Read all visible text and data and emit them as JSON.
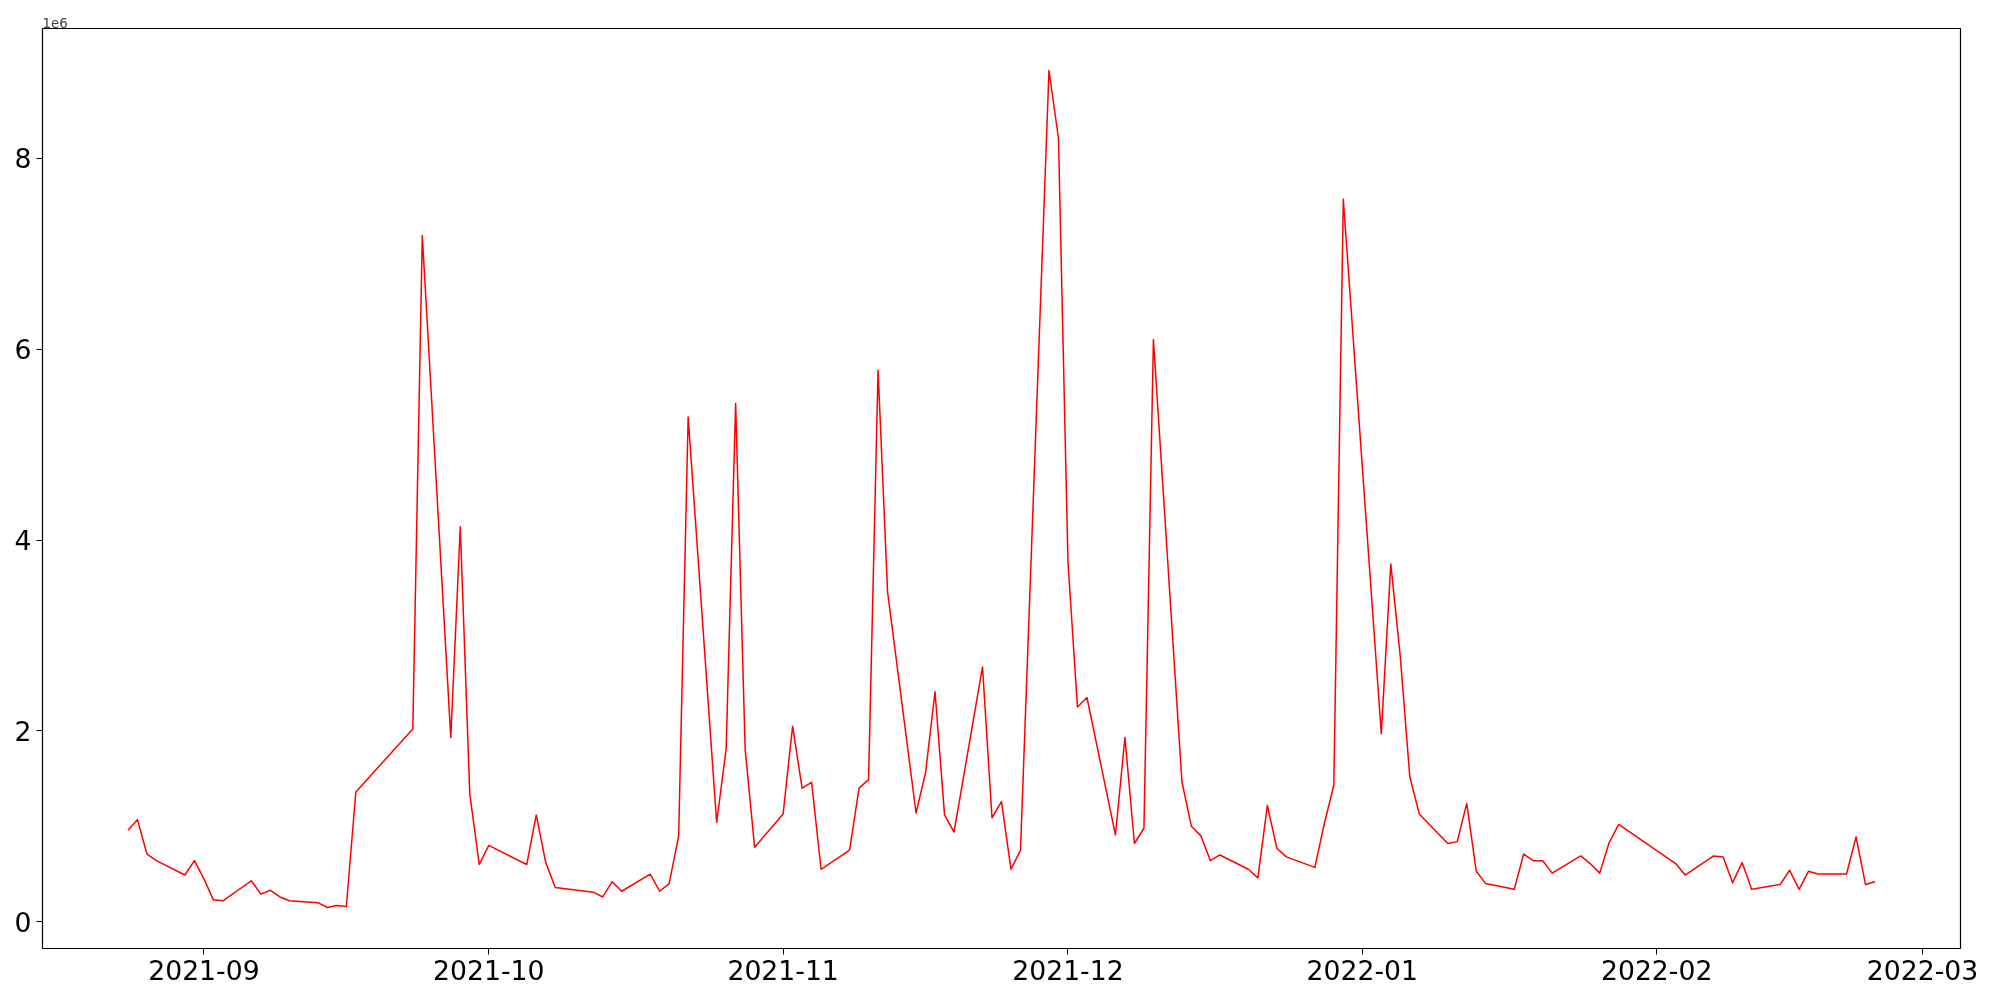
{
  "chart_data": {
    "type": "line",
    "annotations": [
      "1e6"
    ],
    "grid": false,
    "line_style": "solid",
    "x": [
      "2021-08-24",
      "2021-08-25",
      "2021-08-26",
      "2021-08-27",
      "2021-08-30",
      "2021-08-31",
      "2021-09-01",
      "2021-09-02",
      "2021-09-03",
      "2021-09-06",
      "2021-09-07",
      "2021-09-08",
      "2021-09-09",
      "2021-09-10",
      "2021-09-13",
      "2021-09-14",
      "2021-09-15",
      "2021-09-16",
      "2021-09-17",
      "2021-09-23",
      "2021-09-24",
      "2021-09-27",
      "2021-09-28",
      "2021-09-29",
      "2021-09-30",
      "2021-10-01",
      "2021-10-05",
      "2021-10-06",
      "2021-10-07",
      "2021-10-08",
      "2021-10-12",
      "2021-10-13",
      "2021-10-14",
      "2021-10-15",
      "2021-10-18",
      "2021-10-19",
      "2021-10-20",
      "2021-10-21",
      "2021-10-22",
      "2021-10-25",
      "2021-10-26",
      "2021-10-27",
      "2021-10-28",
      "2021-10-29",
      "2021-11-01",
      "2021-11-02",
      "2021-11-03",
      "2021-11-04",
      "2021-11-05",
      "2021-11-08",
      "2021-11-09",
      "2021-11-10",
      "2021-11-11",
      "2021-11-12",
      "2021-11-15",
      "2021-11-16",
      "2021-11-17",
      "2021-11-18",
      "2021-11-19",
      "2021-11-22",
      "2021-11-23",
      "2021-11-24",
      "2021-11-25",
      "2021-11-26",
      "2021-11-29",
      "2021-11-30",
      "2021-12-01",
      "2021-12-02",
      "2021-12-03",
      "2021-12-06",
      "2021-12-07",
      "2021-12-08",
      "2021-12-09",
      "2021-12-10",
      "2021-12-13",
      "2021-12-14",
      "2021-12-15",
      "2021-12-16",
      "2021-12-17",
      "2021-12-20",
      "2021-12-21",
      "2021-12-22",
      "2021-12-23",
      "2021-12-24",
      "2021-12-27",
      "2021-12-28",
      "2021-12-29",
      "2021-12-30",
      "2022-01-03",
      "2022-01-04",
      "2022-01-05",
      "2022-01-06",
      "2022-01-07",
      "2022-01-10",
      "2022-01-11",
      "2022-01-12",
      "2022-01-13",
      "2022-01-14",
      "2022-01-17",
      "2022-01-18",
      "2022-01-19",
      "2022-01-20",
      "2022-01-21",
      "2022-01-24",
      "2022-01-25",
      "2022-01-26",
      "2022-01-27",
      "2022-01-28",
      "2022-02-03",
      "2022-02-04",
      "2022-02-07",
      "2022-02-08",
      "2022-02-09",
      "2022-02-10",
      "2022-02-11",
      "2022-02-14",
      "2022-02-15",
      "2022-02-16",
      "2022-02-17",
      "2022-02-18",
      "2022-02-21",
      "2022-02-22",
      "2022-02-23",
      "2022-02-24"
    ],
    "series": [
      {
        "color": "#ff0000",
        "values": [
          0.96,
          1.07,
          0.71,
          0.64,
          0.49,
          0.64,
          0.45,
          0.23,
          0.22,
          0.43,
          0.29,
          0.33,
          0.26,
          0.22,
          0.2,
          0.15,
          0.17,
          0.16,
          1.36,
          2.02,
          7.19,
          1.93,
          4.14,
          1.34,
          0.6,
          0.8,
          0.6,
          1.12,
          0.62,
          0.36,
          0.31,
          0.26,
          0.42,
          0.32,
          0.5,
          0.32,
          0.4,
          0.9,
          5.29,
          1.04,
          1.81,
          5.43,
          1.81,
          0.78,
          1.13,
          2.05,
          1.4,
          1.46,
          0.55,
          0.75,
          1.4,
          1.49,
          5.78,
          3.46,
          1.14,
          1.56,
          2.41,
          1.12,
          0.94,
          2.67,
          1.09,
          1.26,
          0.55,
          0.75,
          8.92,
          8.21,
          3.77,
          2.25,
          2.35,
          0.91,
          1.93,
          0.82,
          0.98,
          6.1,
          1.47,
          1.0,
          0.9,
          0.64,
          0.7,
          0.55,
          0.46,
          1.22,
          0.77,
          0.68,
          0.57,
          1.03,
          1.43,
          7.57,
          1.97,
          3.75,
          2.78,
          1.52,
          1.13,
          0.82,
          0.84,
          1.24,
          0.53,
          0.4,
          0.34,
          0.71,
          0.64,
          0.64,
          0.51,
          0.69,
          0.61,
          0.51,
          0.83,
          1.02,
          0.61,
          0.49,
          0.69,
          0.68,
          0.41,
          0.62,
          0.34,
          0.39,
          0.54,
          0.34,
          0.53,
          0.5,
          0.5,
          0.89,
          0.39,
          0.42
        ]
      }
    ],
    "xlim": [
      "2021-08-15",
      "2022-03-05"
    ],
    "ylim": [
      -0.28,
      9.36
    ],
    "xticks": [
      {
        "value": "2021-09-01",
        "label": "2021-09"
      },
      {
        "value": "2021-10-01",
        "label": "2021-10"
      },
      {
        "value": "2021-11-01",
        "label": "2021-11"
      },
      {
        "value": "2021-12-01",
        "label": "2021-12"
      },
      {
        "value": "2022-01-01",
        "label": "2022-01"
      },
      {
        "value": "2022-02-01",
        "label": "2022-02"
      },
      {
        "value": "2022-03-01",
        "label": "2022-03"
      }
    ],
    "yticks": [
      0,
      2,
      4,
      6,
      8
    ]
  }
}
